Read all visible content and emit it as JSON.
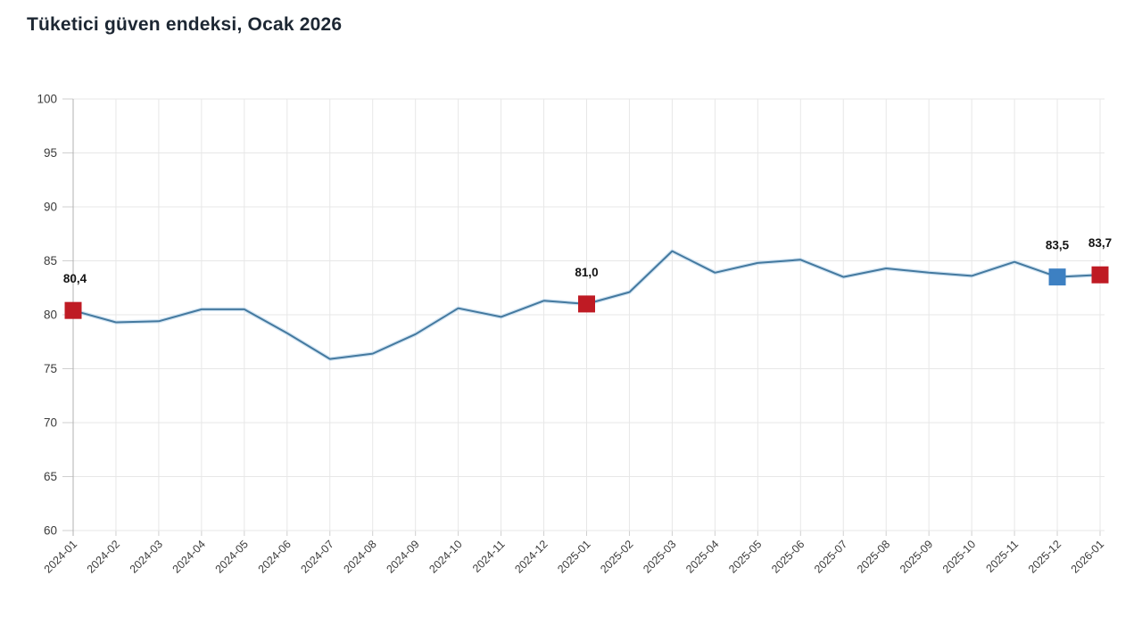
{
  "header": {
    "title": "Tüketici güven endeksi, Ocak 2026"
  },
  "chart_data": {
    "type": "line",
    "title": "Tüketici güven endeksi, Ocak 2026",
    "x": [
      "2024-01",
      "2024-02",
      "2024-03",
      "2024-04",
      "2024-05",
      "2024-06",
      "2024-07",
      "2024-08",
      "2024-09",
      "2024-10",
      "2024-11",
      "2024-12",
      "2025-01",
      "2025-02",
      "2025-03",
      "2025-04",
      "2025-05",
      "2025-06",
      "2025-07",
      "2025-08",
      "2025-09",
      "2025-10",
      "2025-11",
      "2025-12",
      "2026-01"
    ],
    "series": [
      {
        "name": "Tüketici güven endeksi",
        "values": [
          80.4,
          79.3,
          79.4,
          80.5,
          80.5,
          78.3,
          75.9,
          76.4,
          78.2,
          80.6,
          79.8,
          81.3,
          81.0,
          82.1,
          85.9,
          83.9,
          84.8,
          85.1,
          83.5,
          84.3,
          83.9,
          83.6,
          84.9,
          83.5,
          83.7
        ]
      }
    ],
    "ylim": [
      60,
      100
    ],
    "ytick_step": 5,
    "ytick_labels": [
      "60",
      "65",
      "70",
      "75",
      "80",
      "85",
      "90",
      "95",
      "100"
    ],
    "grid": true,
    "x_label_rotation": -45,
    "legend": "none",
    "annotations": [
      {
        "index": 0,
        "label": "80,4",
        "marker": "square",
        "marker_color": "#bf1b24"
      },
      {
        "index": 12,
        "label": "81,0",
        "marker": "square",
        "marker_color": "#bf1b24"
      },
      {
        "index": 23,
        "label": "83,5",
        "marker": "square",
        "marker_color": "#3d80c2"
      },
      {
        "index": 24,
        "label": "83,7",
        "marker": "square",
        "marker_color": "#bf1b24"
      }
    ],
    "colors": {
      "line": "#44799f",
      "line_halo": "#c8def0",
      "marker_red": "#bf1b24",
      "marker_blue": "#3d80c2",
      "grid": "#e7e7e7",
      "axis": "#b0b0b0",
      "tick": "#cfcfcf",
      "tick_text": "#3c3c3c",
      "data_label": "#141414",
      "title": "#1d2733"
    }
  }
}
